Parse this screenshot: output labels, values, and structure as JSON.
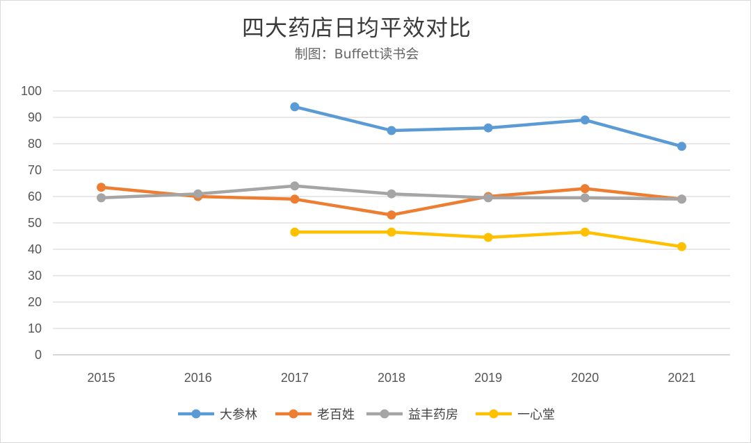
{
  "chart_data": {
    "type": "line",
    "title": "四大药店日均平效对比",
    "subtitle": "制图：Buffett读书会",
    "xlabel": "",
    "ylabel": "",
    "categories": [
      "2015",
      "2016",
      "2017",
      "2018",
      "2019",
      "2020",
      "2021"
    ],
    "ylim": [
      0,
      100
    ],
    "yticks": [
      0,
      10,
      20,
      30,
      40,
      50,
      60,
      70,
      80,
      90,
      100
    ],
    "grid": true,
    "legend_position": "bottom",
    "series": [
      {
        "name": "大参林",
        "color": "#5b9bd5",
        "values": [
          null,
          null,
          94,
          85,
          86,
          89,
          79
        ]
      },
      {
        "name": "老百姓",
        "color": "#ed7d31",
        "values": [
          63.5,
          60,
          59,
          53,
          60,
          63,
          59
        ]
      },
      {
        "name": "益丰药房",
        "color": "#a5a5a5",
        "values": [
          59.5,
          61,
          64,
          61,
          59.5,
          59.5,
          59
        ]
      },
      {
        "name": "一心堂",
        "color": "#ffc000",
        "values": [
          null,
          null,
          46.5,
          46.5,
          44.5,
          46.5,
          41
        ]
      }
    ]
  }
}
